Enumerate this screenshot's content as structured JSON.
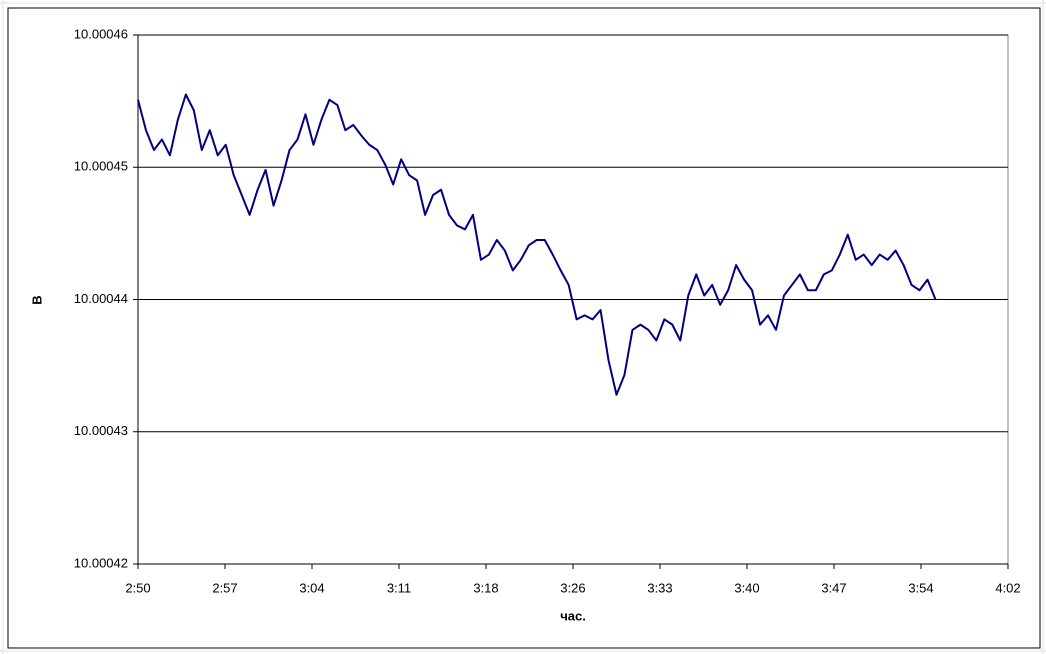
{
  "chart_data": {
    "type": "line",
    "x_label": "час.",
    "y_label": "В",
    "x": [
      170,
      170.66,
      171.32,
      171.98,
      172.64,
      173.3,
      173.96,
      174.62,
      175.28,
      175.94,
      176.6,
      177.26,
      177.92,
      178.58,
      179.24,
      179.9,
      180.56,
      181.22,
      181.88,
      182.54,
      183.2,
      183.86,
      184.52,
      185.18,
      185.84,
      186.5,
      187.16,
      187.82,
      188.48,
      189.14,
      189.8,
      190.46,
      191.12,
      191.78,
      192.44,
      193.1,
      193.76,
      194.42,
      195.08,
      195.74,
      196.4,
      197.06,
      197.72,
      198.38,
      199.04,
      199.7,
      200.36,
      201.02,
      201.68,
      202.34,
      203,
      203.66,
      204.32,
      204.98,
      205.64,
      206.3,
      206.96,
      207.62,
      208.28,
      208.94,
      209.6,
      210.26,
      210.92,
      211.58,
      212.24,
      212.9,
      213.56,
      214.22,
      214.88,
      215.54,
      216.2,
      216.86,
      217.52,
      218.18,
      218.84,
      219.5,
      220.16,
      220.82,
      221.48,
      222.14,
      222.8,
      223.46,
      224.12,
      224.78,
      225.44,
      226.1,
      226.76,
      227.42,
      228.08,
      228.74,
      229.4,
      230.06,
      230.72,
      231.38,
      232.04,
      232.7,
      233.36,
      234.02,
      234.68,
      235.34,
      236
    ],
    "series": [
      {
        "color": "#000080",
        "values": [
          10.0004551,
          10.0004528,
          10.0004513,
          10.0004521,
          10.0004509,
          10.0004536,
          10.0004555,
          10.0004543,
          10.0004513,
          10.0004528,
          10.0004509,
          10.0004517,
          10.0004494,
          10.0004479,
          10.0004464,
          10.0004483,
          10.0004498,
          10.0004471,
          10.000449,
          10.0004513,
          10.0004521,
          10.000454,
          10.0004517,
          10.0004536,
          10.0004551,
          10.0004547,
          10.0004528,
          10.0004532,
          10.0004524,
          10.0004517,
          10.0004513,
          10.0004502,
          10.0004487,
          10.0004506,
          10.0004494,
          10.000449,
          10.0004464,
          10.0004479,
          10.0004483,
          10.0004464,
          10.0004456,
          10.0004453,
          10.0004464,
          10.000443,
          10.0004434,
          10.0004445,
          10.0004437,
          10.0004422,
          10.000443,
          10.0004441,
          10.0004445,
          10.0004445,
          10.0004434,
          10.0004422,
          10.0004411,
          10.0004385,
          10.0004388,
          10.0004385,
          10.0004392,
          10.0004354,
          10.0004328,
          10.0004343,
          10.0004377,
          10.0004381,
          10.0004377,
          10.0004369,
          10.0004385,
          10.0004381,
          10.0004369,
          10.0004403,
          10.0004419,
          10.0004403,
          10.0004411,
          10.0004396,
          10.0004407,
          10.0004426,
          10.0004415,
          10.0004407,
          10.0004381,
          10.0004388,
          10.0004377,
          10.0004403,
          10.0004411,
          10.0004419,
          10.0004407,
          10.0004407,
          10.0004419,
          10.0004422,
          10.0004434,
          10.0004449,
          10.000443,
          10.0004434,
          10.0004426,
          10.0004434,
          10.000443,
          10.0004437,
          10.0004426,
          10.0004411,
          10.0004407,
          10.0004415,
          10.00044
        ]
      }
    ],
    "xlim": [
      170,
      242
    ],
    "xticks": [
      {
        "value": 170,
        "label": "2:50"
      },
      {
        "value": 177.2,
        "label": "2:57"
      },
      {
        "value": 184.4,
        "label": "3:04"
      },
      {
        "value": 191.6,
        "label": "3:11"
      },
      {
        "value": 198.8,
        "label": "3:18"
      },
      {
        "value": 206,
        "label": "3:26"
      },
      {
        "value": 213.2,
        "label": "3:33"
      },
      {
        "value": 220.4,
        "label": "3:40"
      },
      {
        "value": 227.6,
        "label": "3:47"
      },
      {
        "value": 234.8,
        "label": "3:54"
      },
      {
        "value": 242,
        "label": "4:02"
      }
    ],
    "ylim": [
      10.00042,
      10.00046
    ],
    "yticks": [
      10.00042,
      10.00043,
      10.00044,
      10.00045,
      10.00046
    ],
    "grid": true
  }
}
